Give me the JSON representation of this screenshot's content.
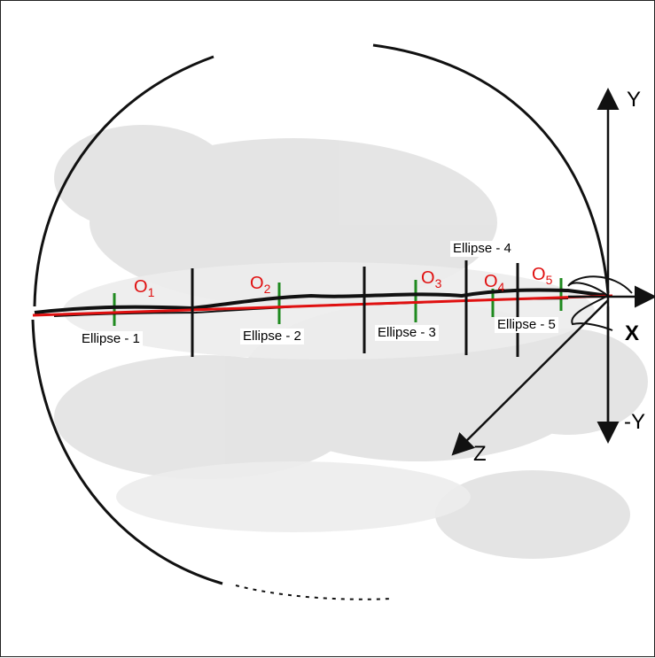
{
  "axes": {
    "y": "Y",
    "x": "X",
    "neg_y": "-Y",
    "z": "Z"
  },
  "ellipses": [
    {
      "label": "Ellipse - 1",
      "origin_letter": "O",
      "origin_index": "1"
    },
    {
      "label": "Ellipse - 2",
      "origin_letter": "O",
      "origin_index": "2"
    },
    {
      "label": "Ellipse - 3",
      "origin_letter": "O",
      "origin_index": "3"
    },
    {
      "label": "Ellipse - 4",
      "origin_letter": "O",
      "origin_index": "4"
    },
    {
      "label": "Ellipse - 5",
      "origin_letter": "O",
      "origin_index": "5"
    }
  ],
  "colors": {
    "centerline": "#e01010",
    "origin_marks": "#1f8a1f",
    "outline": "#111111",
    "stain": "#d8d8d8"
  }
}
